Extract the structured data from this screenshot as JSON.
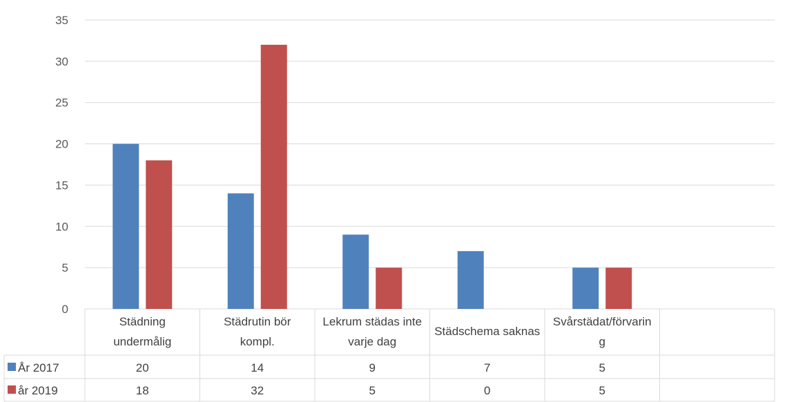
{
  "chart_data": {
    "type": "bar",
    "categories": [
      [
        "Städning",
        "undermålig"
      ],
      [
        "Städrutin bör",
        "kompl."
      ],
      [
        "Lekrum städas inte",
        "varje dag"
      ],
      [
        "Städschema saknas"
      ],
      [
        "Svårstädat/förvarin",
        "g"
      ]
    ],
    "series": [
      {
        "name": "År 2017",
        "values": [
          20,
          14,
          9,
          7,
          5
        ],
        "color": "#4F81BD"
      },
      {
        "name": "år 2019",
        "values": [
          18,
          32,
          5,
          0,
          5
        ],
        "color": "#C0504D"
      }
    ],
    "ylim": [
      0,
      35
    ],
    "yticks": [
      0,
      5,
      10,
      15,
      20,
      25,
      30,
      35
    ],
    "grid": true,
    "legend": "data-table"
  }
}
